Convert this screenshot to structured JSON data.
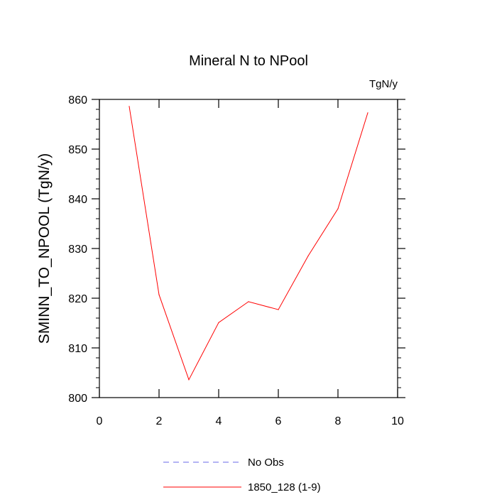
{
  "chart_data": {
    "type": "line",
    "title": "Mineral N to NPool",
    "units": "TgN/y",
    "ylabel": "SMINN_TO_NPOOL  (TgN/y)",
    "xlabel": "",
    "xlim": [
      0,
      10
    ],
    "ylim": [
      800,
      860
    ],
    "x_ticks": [
      0,
      2,
      4,
      6,
      8,
      10
    ],
    "y_ticks": [
      800,
      810,
      820,
      830,
      840,
      850,
      860
    ],
    "grid": false,
    "legend_position": "bottom",
    "series": [
      {
        "name": "No Obs",
        "color": "#6a6ae8",
        "dash": "dashed",
        "x": [],
        "values": []
      },
      {
        "name": "1850_128 (1-9)",
        "color": "#ff0000",
        "dash": "solid",
        "x": [
          1,
          2,
          3,
          4,
          5,
          6,
          7,
          8,
          9
        ],
        "values": [
          858.6,
          820.7,
          803.6,
          815.1,
          819.3,
          817.7,
          828.5,
          838.0,
          857.3
        ]
      }
    ]
  }
}
